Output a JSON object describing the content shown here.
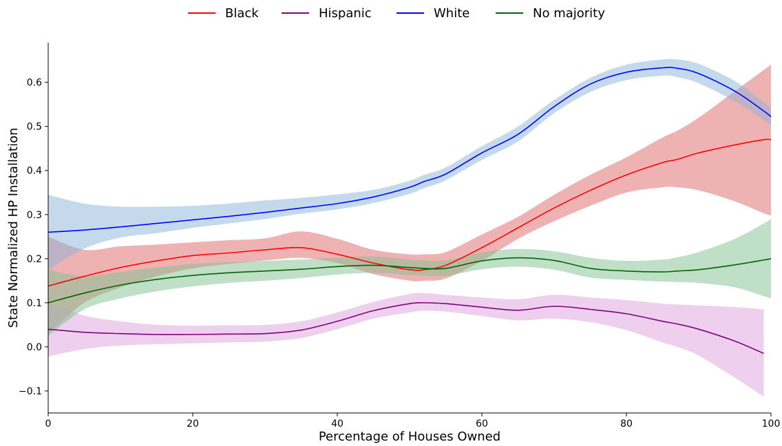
{
  "chart_data": {
    "type": "line",
    "title": "",
    "xlabel": "Percentage of Houses Owned",
    "ylabel": "State Normalized HP Installation",
    "xlim": [
      0,
      100
    ],
    "ylim": [
      -0.15,
      0.69
    ],
    "xticks": [
      0,
      20,
      40,
      60,
      80,
      100
    ],
    "xtick_labels": [
      "0",
      "20",
      "40",
      "60",
      "80",
      "100"
    ],
    "yticks": [
      -0.1,
      0.0,
      0.1,
      0.2,
      0.3,
      0.4,
      0.5,
      0.6
    ],
    "ytick_labels": [
      "−0.1",
      "0.0",
      "0.1",
      "0.2",
      "0.3",
      "0.4",
      "0.5",
      "0.6"
    ],
    "grid": false,
    "legend_position": "top-center",
    "x": [
      0,
      5,
      10,
      15,
      20,
      25,
      30,
      35,
      40,
      45,
      50,
      52,
      55,
      60,
      65,
      70,
      75,
      80,
      85,
      87,
      90,
      95,
      99,
      100
    ],
    "series": [
      {
        "name": "Black",
        "color": "#ff0000",
        "band_color": "#e06666",
        "values": [
          0.138,
          0.16,
          0.18,
          0.195,
          0.207,
          0.213,
          0.22,
          0.225,
          0.21,
          0.19,
          0.175,
          0.175,
          0.185,
          0.225,
          0.27,
          0.315,
          0.355,
          0.39,
          0.418,
          0.425,
          0.44,
          0.458,
          0.47,
          0.47
        ],
        "lower": [
          0.03,
          0.1,
          0.135,
          0.16,
          0.178,
          0.188,
          0.196,
          0.202,
          0.19,
          0.165,
          0.15,
          0.15,
          0.155,
          0.195,
          0.245,
          0.285,
          0.32,
          0.35,
          0.362,
          0.362,
          0.355,
          0.33,
          0.303,
          0.298
        ],
        "upper": [
          0.25,
          0.22,
          0.228,
          0.232,
          0.237,
          0.242,
          0.246,
          0.262,
          0.245,
          0.22,
          0.21,
          0.21,
          0.215,
          0.255,
          0.295,
          0.345,
          0.39,
          0.43,
          0.475,
          0.49,
          0.52,
          0.58,
          0.628,
          0.64
        ]
      },
      {
        "name": "Hispanic",
        "color": "#800080",
        "band_color": "#dda0dd",
        "values": [
          0.04,
          0.033,
          0.03,
          0.028,
          0.028,
          0.029,
          0.03,
          0.038,
          0.058,
          0.082,
          0.098,
          0.1,
          0.098,
          0.09,
          0.083,
          0.092,
          0.085,
          0.075,
          0.058,
          0.052,
          0.04,
          0.013,
          -0.015,
          null
        ],
        "lower": [
          -0.022,
          -0.005,
          0.003,
          0.006,
          0.008,
          0.01,
          0.012,
          0.02,
          0.04,
          0.064,
          0.078,
          0.082,
          0.08,
          0.07,
          0.06,
          0.064,
          0.056,
          0.038,
          0.01,
          0.0,
          -0.02,
          -0.07,
          -0.113,
          null
        ],
        "upper": [
          0.1,
          0.071,
          0.058,
          0.05,
          0.048,
          0.049,
          0.05,
          0.058,
          0.078,
          0.102,
          0.12,
          0.122,
          0.118,
          0.112,
          0.108,
          0.118,
          0.112,
          0.106,
          0.098,
          0.096,
          0.094,
          0.09,
          0.085,
          null
        ]
      },
      {
        "name": "White",
        "color": "#0000ff",
        "band_color": "#8ab4da",
        "values": [
          0.26,
          0.265,
          0.272,
          0.28,
          0.288,
          0.296,
          0.305,
          0.315,
          0.325,
          0.34,
          0.362,
          0.375,
          0.392,
          0.44,
          0.482,
          0.545,
          0.596,
          0.623,
          0.633,
          0.632,
          0.62,
          0.58,
          0.535,
          0.522
        ],
        "lower": [
          0.175,
          0.223,
          0.248,
          0.258,
          0.27,
          0.28,
          0.29,
          0.302,
          0.312,
          0.326,
          0.347,
          0.36,
          0.378,
          0.424,
          0.466,
          0.53,
          0.578,
          0.605,
          0.615,
          0.612,
          0.598,
          0.557,
          0.515,
          0.503
        ],
        "upper": [
          0.345,
          0.325,
          0.318,
          0.318,
          0.32,
          0.325,
          0.332,
          0.338,
          0.346,
          0.356,
          0.377,
          0.39,
          0.407,
          0.455,
          0.5,
          0.56,
          0.61,
          0.64,
          0.652,
          0.652,
          0.642,
          0.603,
          0.555,
          0.541
        ]
      },
      {
        "name": "No majority",
        "color": "#006400",
        "band_color": "#7fbf8f",
        "values": [
          0.1,
          0.122,
          0.14,
          0.153,
          0.162,
          0.168,
          0.172,
          0.176,
          0.182,
          0.185,
          0.18,
          0.178,
          0.178,
          0.195,
          0.202,
          0.196,
          0.178,
          0.172,
          0.17,
          0.172,
          0.175,
          0.186,
          0.197,
          0.2
        ],
        "lower": [
          0.025,
          0.085,
          0.11,
          0.126,
          0.137,
          0.145,
          0.15,
          0.156,
          0.164,
          0.168,
          0.163,
          0.161,
          0.161,
          0.176,
          0.182,
          0.175,
          0.157,
          0.152,
          0.148,
          0.147,
          0.145,
          0.135,
          0.115,
          0.11
        ],
        "upper": [
          0.175,
          0.16,
          0.17,
          0.18,
          0.188,
          0.192,
          0.195,
          0.198,
          0.202,
          0.205,
          0.198,
          0.196,
          0.196,
          0.214,
          0.222,
          0.217,
          0.202,
          0.195,
          0.198,
          0.203,
          0.215,
          0.245,
          0.28,
          0.29
        ]
      }
    ]
  }
}
